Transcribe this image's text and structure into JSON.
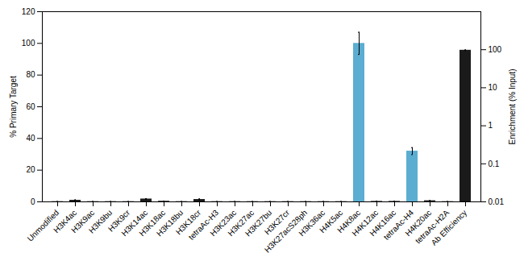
{
  "chart_data": {
    "type": "bar",
    "categories": [
      "Unmodified",
      "H3K4ac",
      "H3K9ac",
      "H3K9bu",
      "H3K9cr",
      "H3K14ac",
      "H3K18ac",
      "H3K18bu",
      "H3K18cr",
      "tetraAc-H3",
      "H3K23ac",
      "H3K27ac",
      "H3K27bu",
      "H3K27cr",
      "H3K27acS28ph",
      "H3K36ac",
      "H4K5ac",
      "H4K8ac",
      "H4K12ac",
      "H4K16ac",
      "tetraAc-H4",
      "H4K20ac",
      "tetraAc-H2A",
      "Ab Efficiency"
    ],
    "series": [
      {
        "values": [
          0.15,
          1.0,
          0.15,
          0.15,
          0.15,
          1.8,
          0.4,
          0.15,
          1.5,
          0.15,
          0.15,
          0.15,
          0.15,
          0.15,
          0.15,
          0.15,
          0.15,
          100.0,
          0.3,
          0.3,
          32.0,
          0.7,
          0.15,
          null
        ],
        "errors": [
          0.05,
          0.25,
          0.05,
          0.03,
          0.03,
          0.25,
          0.1,
          0.03,
          0.35,
          0.03,
          0.03,
          0.03,
          0.03,
          0.03,
          0.03,
          0.03,
          0.03,
          7.0,
          0.1,
          0.1,
          2.2,
          0.1,
          0.03,
          null
        ],
        "colors": [
          "#1a1a1a",
          "#1a1a1a",
          "#1a1a1a",
          "#1a1a1a",
          "#1a1a1a",
          "#1a1a1a",
          "#1a1a1a",
          "#1a1a1a",
          "#1a1a1a",
          "#1a1a1a",
          "#1a1a1a",
          "#1a1a1a",
          "#1a1a1a",
          "#1a1a1a",
          "#1a1a1a",
          "#1a1a1a",
          "#1a1a1a",
          "#5badd1",
          "#1a1a1a",
          "#1a1a1a",
          "#5badd1",
          "#1a1a1a",
          "#1a1a1a",
          null
        ]
      },
      {
        "axis": "y2",
        "log": true,
        "color": "#1a1a1a",
        "values": [
          null,
          null,
          null,
          null,
          null,
          null,
          null,
          null,
          null,
          null,
          null,
          null,
          null,
          null,
          null,
          null,
          null,
          null,
          null,
          null,
          null,
          null,
          null,
          97.0
        ],
        "errors": [
          null,
          null,
          null,
          null,
          null,
          null,
          null,
          null,
          null,
          null,
          null,
          null,
          null,
          null,
          null,
          null,
          null,
          null,
          null,
          null,
          null,
          null,
          null,
          1.8
        ]
      }
    ],
    "ylabel": "% Primary Target",
    "y2label": "Enrichment (% Input)",
    "ylim": [
      0,
      120
    ],
    "yticks": [
      0,
      20,
      40,
      60,
      80,
      100,
      120
    ],
    "y2lim": [
      0.01,
      1000
    ],
    "y2ticks": [
      0.01,
      0.1,
      1,
      10,
      100
    ],
    "grid": false
  }
}
